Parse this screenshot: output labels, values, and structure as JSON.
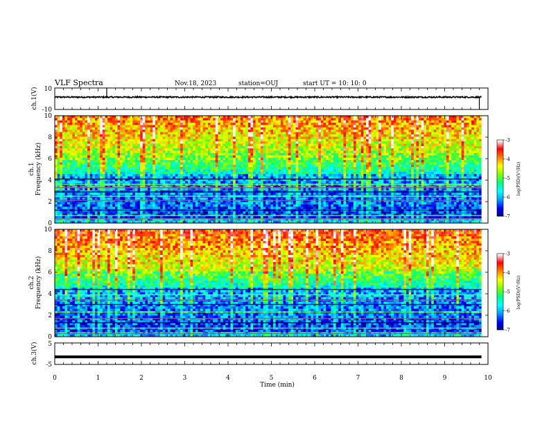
{
  "header": {
    "title": "VLF Spectra",
    "date": "Nov.18, 2023",
    "station": "station=OUJ",
    "start": "start  UT =   10: 10: 0"
  },
  "chart_data": [
    {
      "type": "line",
      "name": "ch1-waveform",
      "ylabel": "ch.1(V)",
      "ylim": [
        -10,
        10
      ],
      "yticks": [
        "10",
        "-10"
      ],
      "mean_level": 1.5,
      "noise_amplitude": 0.6,
      "spikes": [
        [
          1.2,
          10
        ],
        [
          9.8,
          -10
        ]
      ],
      "x_end_min": 9.85
    },
    {
      "type": "heatmap",
      "name": "ch1-spectrogram",
      "ylabel": "ch.1\nFrequency (kHz)",
      "ylabel_line1": "ch.1",
      "ylabel_line2": "Frequency (kHz)",
      "ylim": [
        0,
        10
      ],
      "yticks": [
        "0",
        "2",
        "4",
        "6",
        "8",
        "10"
      ],
      "colorbar": {
        "min": -7,
        "max": -3,
        "ticks": [
          "-3",
          "-4",
          "-5",
          "-6",
          "-7"
        ],
        "label": "log(PSD)(V²/Hz)"
      }
    },
    {
      "type": "heatmap",
      "name": "ch2-spectrogram",
      "ylabel_line1": "ch.2",
      "ylabel_line2": "Frequency (kHz)",
      "ylim": [
        0,
        10
      ],
      "yticks": [
        "0",
        "2",
        "4",
        "6",
        "8",
        "10"
      ],
      "colorbar": {
        "min": -7,
        "max": -3,
        "ticks": [
          "-3",
          "-4",
          "-5",
          "-6",
          "-7"
        ],
        "label": "log(PSD)(V²/Hz)"
      }
    },
    {
      "type": "line",
      "name": "ch3-waveform",
      "ylabel": "ch.3(V)",
      "ylim": [
        -5,
        5
      ],
      "yticks": [
        "5",
        "-5"
      ],
      "mean_level": -1.5,
      "x_end_min": 9.85
    }
  ],
  "xaxis": {
    "label": "Time (min)",
    "xlim": [
      0,
      10
    ],
    "ticks": [
      "0",
      "1",
      "2",
      "3",
      "4",
      "5",
      "6",
      "7",
      "8",
      "9",
      "10"
    ]
  },
  "colors": {
    "background": "#ffffff",
    "trace": "#000000",
    "colormap": [
      "#000080",
      "#0000ff",
      "#00a0ff",
      "#00ffff",
      "#00ff80",
      "#80ff00",
      "#ffff00",
      "#ff8000",
      "#ff0000",
      "#ffffff"
    ]
  }
}
